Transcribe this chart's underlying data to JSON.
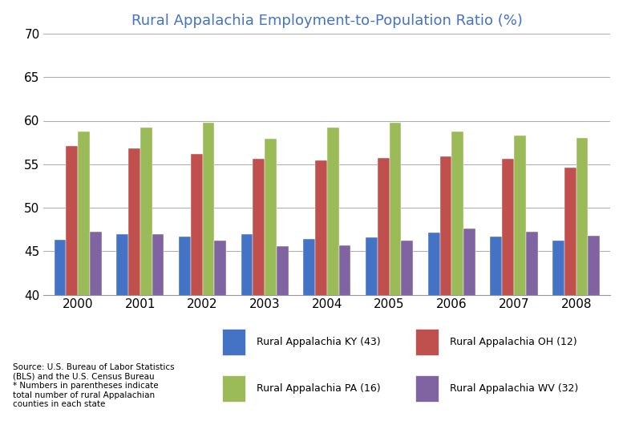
{
  "title": "Rural Appalachia Employment-to-Population Ratio (%)",
  "years": [
    2000,
    2001,
    2002,
    2003,
    2004,
    2005,
    2006,
    2007,
    2008
  ],
  "series": {
    "Rural Appalachia KY (43)": [
      46.3,
      47.0,
      46.7,
      47.0,
      46.4,
      46.6,
      47.1,
      46.7,
      46.2
    ],
    "Rural Appalachia OH (12)": [
      57.1,
      56.8,
      56.2,
      55.6,
      55.4,
      55.7,
      55.9,
      55.6,
      54.6
    ],
    "Rural Appalachia PA (16)": [
      58.8,
      59.2,
      59.8,
      57.9,
      59.2,
      59.8,
      58.8,
      58.3,
      58.0
    ],
    "Rural Appalachia WV (32)": [
      47.2,
      47.0,
      46.2,
      45.6,
      45.7,
      46.2,
      47.6,
      47.2,
      46.8
    ]
  },
  "colors": {
    "Rural Appalachia KY (43)": "#4472C4",
    "Rural Appalachia OH (12)": "#C0504D",
    "Rural Appalachia PA (16)": "#9BBB59",
    "Rural Appalachia WV (32)": "#8064A2"
  },
  "ylim": [
    40,
    70
  ],
  "yticks": [
    40,
    45,
    50,
    55,
    60,
    65,
    70
  ],
  "background_color": "#FFFFFF",
  "title_color": "#4472C4",
  "title_fontsize": 13,
  "source_text": "Source: U.S. Bureau of Labor Statistics\n(BLS) and the U.S. Census Bureau\n* Numbers in parentheses indicate\ntotal number of rural Appalachian\ncounties in each state",
  "bar_width": 0.19
}
